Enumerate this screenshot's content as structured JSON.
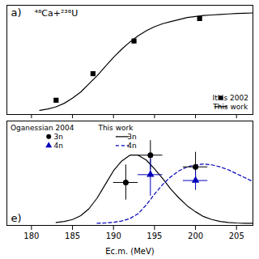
{
  "chart_data": [
    {
      "type": "line",
      "title": "a)",
      "annotations": [
        "⁴⁸Ca+²³⁸U"
      ],
      "xlim": [
        177,
        207
      ],
      "xticks": [
        180,
        185,
        190,
        195,
        200,
        205
      ],
      "ylim": [
        -0.02,
        1.05
      ],
      "yticks": [],
      "tick_labels": false,
      "legend": "lower right",
      "series": [
        {
          "name": "Itkis 2002",
          "type": "scatter",
          "marker": "square",
          "color": "#000000",
          "x": [
            183.0,
            187.5,
            192.5,
            200.5
          ],
          "values": [
            0.12,
            0.38,
            0.7,
            0.92
          ]
        },
        {
          "name": "This work",
          "type": "line",
          "line_style": "solid",
          "color": "#000000",
          "x": [
            181,
            182,
            183,
            184,
            185,
            186,
            187,
            188,
            189,
            190,
            191,
            192,
            193,
            194,
            195,
            196,
            197,
            198,
            199,
            200,
            201,
            202,
            203,
            204,
            205,
            206,
            207
          ],
          "values": [
            0.02,
            0.035,
            0.055,
            0.09,
            0.14,
            0.2,
            0.28,
            0.36,
            0.45,
            0.54,
            0.62,
            0.69,
            0.75,
            0.8,
            0.84,
            0.87,
            0.89,
            0.91,
            0.93,
            0.94,
            0.95,
            0.955,
            0.96,
            0.965,
            0.97,
            0.972,
            0.975
          ]
        }
      ]
    },
    {
      "type": "line",
      "title": "e)",
      "xlabel": "Ec.m. (MeV)",
      "annotations": [
        "Oganessian 2004",
        "This work"
      ],
      "xlim": [
        177,
        207
      ],
      "xticks": [
        180,
        185,
        190,
        195,
        200,
        205
      ],
      "ylim": [
        -0.02,
        1.05
      ],
      "yticks": [],
      "tick_labels": "x",
      "legend": "upper left",
      "series": [
        {
          "name": "3n",
          "type": "scatter",
          "marker": "circle",
          "color": "#000000",
          "x": [
            191.5,
            194.5,
            200.0
          ],
          "values": [
            0.42,
            0.7,
            0.58
          ],
          "x_err": [
            1.5,
            1.5,
            1.5
          ],
          "y_err_low": [
            0.18,
            0.15,
            0.15
          ],
          "y_err_high": [
            0.18,
            0.15,
            0.15
          ]
        },
        {
          "name": "4n",
          "type": "scatter",
          "marker": "triangle",
          "color": "#0000bb",
          "x": [
            194.5,
            200.0
          ],
          "values": [
            0.5,
            0.44
          ],
          "x_err": [
            1.5,
            1.5
          ],
          "y_err_low": [
            0.22,
            0.1
          ],
          "y_err_high": [
            0.16,
            0.1
          ]
        },
        {
          "name": "3n",
          "type": "line",
          "line_style": "solid",
          "color": "#000000",
          "x": [
            183,
            184,
            185,
            186,
            187,
            188,
            189,
            190,
            191,
            192,
            193,
            194,
            195,
            196,
            197,
            198,
            199,
            200,
            201,
            202,
            203,
            204,
            205,
            206,
            207
          ],
          "values": [
            0.01,
            0.02,
            0.04,
            0.08,
            0.15,
            0.26,
            0.4,
            0.54,
            0.64,
            0.7,
            0.7,
            0.65,
            0.56,
            0.46,
            0.35,
            0.26,
            0.18,
            0.12,
            0.07,
            0.04,
            0.02,
            0.01,
            0.005,
            0.002,
            0.001
          ]
        },
        {
          "name": "4n",
          "type": "line",
          "line_style": "dashed",
          "color": "#0000bb",
          "x": [
            188,
            189,
            190,
            191,
            192,
            193,
            194,
            195,
            196,
            197,
            198,
            199,
            200,
            201,
            202,
            203,
            204,
            205,
            206,
            207
          ],
          "values": [
            0.002,
            0.005,
            0.012,
            0.025,
            0.05,
            0.1,
            0.19,
            0.3,
            0.4,
            0.48,
            0.54,
            0.58,
            0.6,
            0.61,
            0.6,
            0.58,
            0.55,
            0.51,
            0.47,
            0.43
          ]
        }
      ]
    }
  ]
}
